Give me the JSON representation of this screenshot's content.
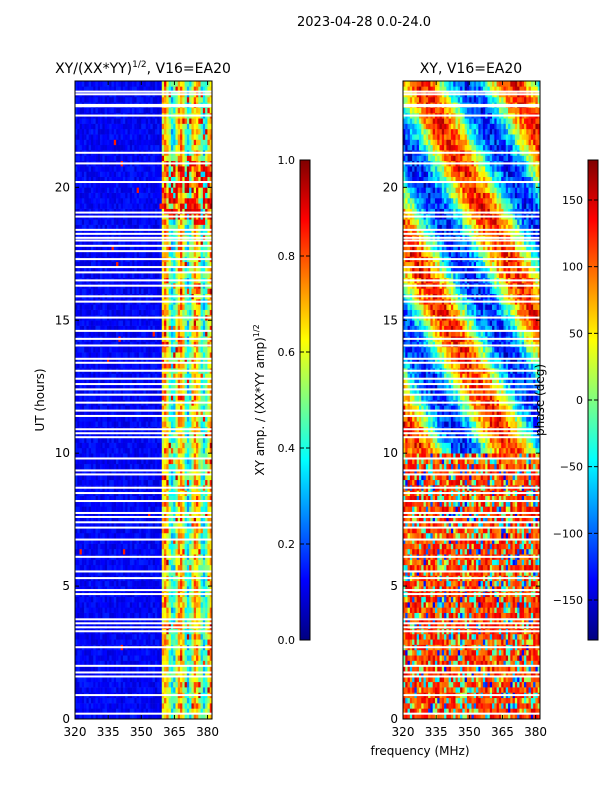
{
  "figure": {
    "suptitle": "2023-04-28 0.0-24.0",
    "shared_xlabel": "frequency (MHz)",
    "shared_ylabel": "UT (hours)"
  },
  "colors": {
    "jet": [
      "#000080",
      "#0000ff",
      "#0080ff",
      "#00ffff",
      "#80ff80",
      "#ffff00",
      "#ff8000",
      "#ff0000",
      "#800000"
    ],
    "gap": "#ffffff",
    "frame": "#000000"
  },
  "chart_data": [
    {
      "type": "heatmap",
      "title": "XY/(XX*YY)",
      "title_exp": "1/2",
      "title_suffix": ", V16=EA20",
      "xlabel": "frequency (MHz)",
      "ylabel": "UT (hours)",
      "xlim": [
        320,
        382
      ],
      "ylim": [
        0,
        24
      ],
      "xticks": [
        320,
        335,
        350,
        365,
        380
      ],
      "xtick_labels": [
        "320",
        "335",
        "350",
        "365",
        "380"
      ],
      "yticks": [
        0,
        5,
        10,
        15,
        20
      ],
      "ytick_labels": [
        "0",
        "5",
        "10",
        "15",
        "20"
      ],
      "colorbar": {
        "label": "XY amp. / (XX*YY amp)",
        "label_exp": "1/2",
        "range": [
          0,
          1
        ],
        "ticks": [
          0,
          0.2,
          0.4,
          0.6,
          0.8,
          1.0
        ],
        "tick_labels": [
          "0.0",
          "0.2",
          "0.4",
          "0.6",
          "0.8",
          "1.0"
        ]
      },
      "description": "low amplitude (~0.1) below 359 MHz; bright bands 0.3–0.9 between 359 and 382 MHz"
    },
    {
      "type": "heatmap",
      "title": "XY, V16=EA20",
      "xlabel": "frequency (MHz)",
      "ylabel": "",
      "xlim": [
        320,
        382
      ],
      "ylim": [
        0,
        24
      ],
      "xticks": [
        320,
        335,
        350,
        365,
        380
      ],
      "xtick_labels": [
        "320",
        "335",
        "350",
        "365",
        "380"
      ],
      "yticks": [
        0,
        5,
        10,
        15,
        20
      ],
      "ytick_labels": [
        "0",
        "5",
        "10",
        "15",
        "20"
      ],
      "colorbar": {
        "label": "phase (deg)",
        "range": [
          -180,
          180
        ],
        "ticks": [
          -150,
          -100,
          -50,
          0,
          50,
          100,
          150
        ],
        "tick_labels": [
          "−150",
          "−100",
          "−50",
          "0",
          "50",
          "100",
          "150"
        ]
      },
      "description": "mostly orange/red phases (~100–150 deg) below 10 h, mixed cyan/blue/yellow phases above 10 h"
    }
  ],
  "gaps_hours": [
    0.2,
    0.9,
    1.6,
    1.75,
    2.0,
    2.7,
    3.3,
    3.45,
    3.6,
    3.75,
    4.7,
    4.85,
    5.3,
    5.55,
    6.1,
    6.75,
    7.2,
    7.4,
    7.6,
    7.75,
    8.2,
    8.5,
    8.7,
    9.2,
    9.35,
    9.8,
    10.6,
    10.75,
    10.9,
    11.4,
    11.6,
    11.9,
    12.2,
    12.4,
    12.6,
    12.8,
    13.1,
    13.4,
    13.55,
    14.05,
    14.3,
    14.6,
    15.1,
    15.7,
    15.9,
    16.3,
    16.5,
    16.8,
    17.0,
    17.3,
    17.6,
    17.8,
    18.0,
    18.1,
    18.25,
    18.4,
    18.9,
    19.05,
    20.2,
    20.9,
    21.3,
    22.7,
    23.05,
    23.1,
    23.5,
    23.6
  ]
}
